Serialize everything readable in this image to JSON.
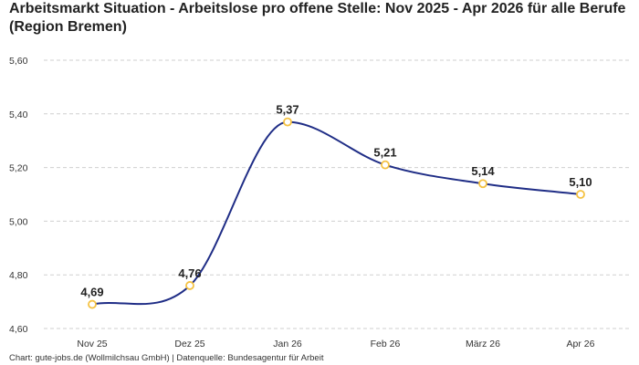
{
  "title": "Arbeitsmarkt Situation - Arbeitslose pro offene Stelle: Nov 2025 - Apr 2026 für alle Berufe (Region Bremen)",
  "footer": "Chart: gute-jobs.de (Wollmilchsau GmbH) | Datenquelle: Bundesagentur für Arbeit",
  "chart_data": {
    "type": "line",
    "categories": [
      "Nov 25",
      "Dez 25",
      "Jan 26",
      "Feb 26",
      "März 26",
      "Apr 26"
    ],
    "series": [
      {
        "values": [
          4.69,
          4.76,
          5.37,
          5.21,
          5.14,
          5.1
        ],
        "data_labels": [
          "4,69",
          "4,76",
          "5,37",
          "5,21",
          "5,14",
          "5,10"
        ]
      }
    ],
    "yticks": [
      "4,60",
      "4,80",
      "5,00",
      "5,20",
      "5,40",
      "5,60"
    ],
    "ylim": [
      4.6,
      5.6
    ],
    "grid": true,
    "line_color": "#1f2d86",
    "marker_color": "#f5c242"
  }
}
